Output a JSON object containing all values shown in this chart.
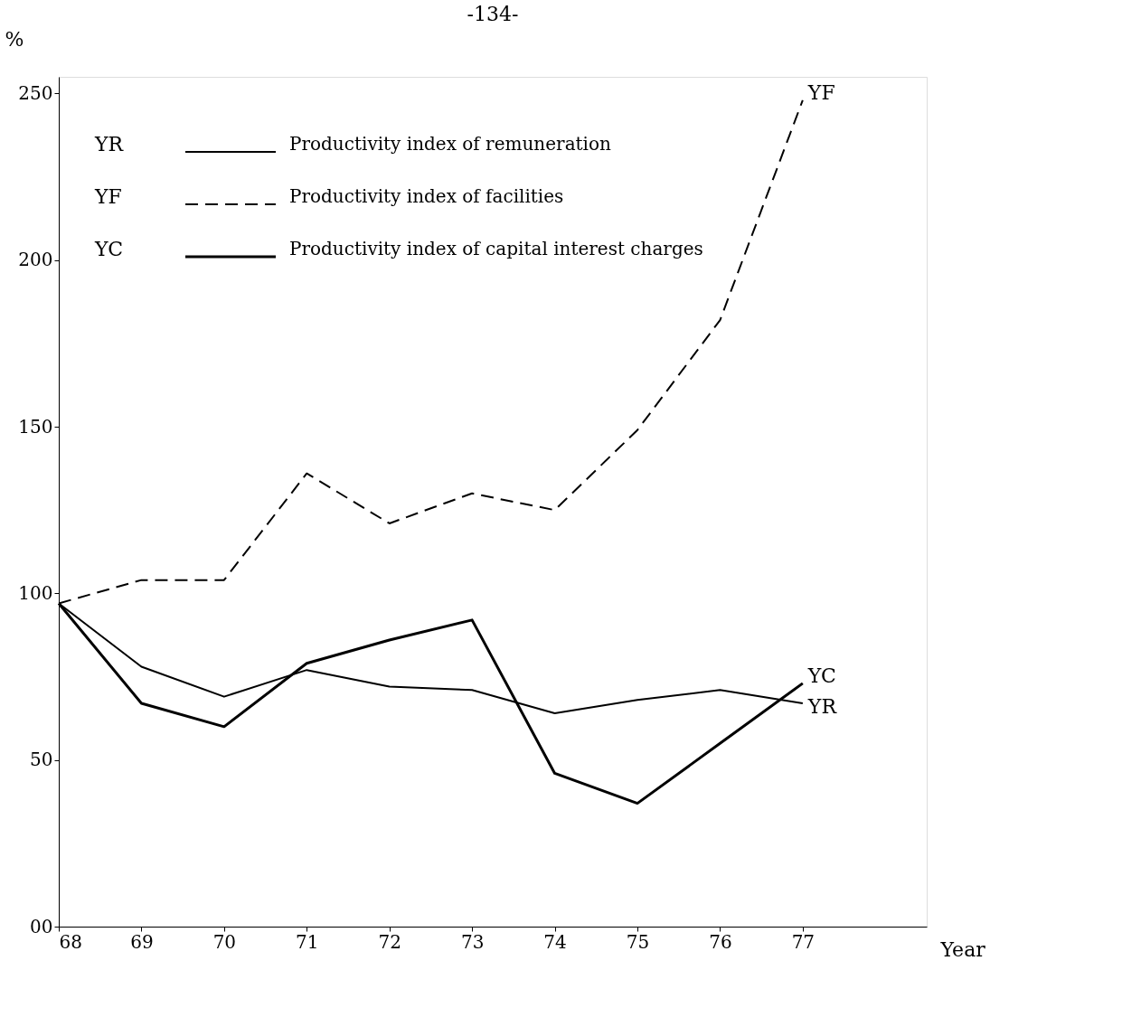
{
  "chart_data": {
    "type": "line",
    "title": "-134-",
    "xlabel": "Year",
    "ylabel": "%",
    "x": [
      68,
      69,
      70,
      71,
      72,
      73,
      74,
      75,
      76,
      77
    ],
    "series": [
      {
        "name": "Productivity index of remuneration",
        "color": "#000000",
        "line_style": "solid",
        "values": [
          97,
          78,
          69,
          77,
          72,
          71,
          64,
          68,
          71,
          67
        ]
      },
      {
        "name": "Productivity index of facilities",
        "color": "#000000",
        "line_style": "dashed",
        "values": [
          97,
          104,
          104,
          136,
          121,
          130,
          125,
          149,
          182,
          248
        ]
      },
      {
        "name": "Productivity index of capital interest charges",
        "color": "#000000",
        "line_style": "solid",
        "values": [
          97,
          67,
          60,
          79,
          86,
          92,
          46,
          37,
          55,
          73
        ]
      }
    ],
    "annotations": [
      "YR",
      "YF",
      "YC"
    ],
    "xlim": [
      68,
      78.5
    ],
    "xticks": [
      68,
      69,
      70,
      71,
      72,
      73,
      74,
      75,
      76,
      77
    ],
    "ylim": [
      0,
      255
    ],
    "yticks": [
      {
        "value": 0,
        "label": "00"
      },
      50,
      100,
      150,
      200,
      250
    ],
    "grid": false,
    "legend": "top"
  }
}
